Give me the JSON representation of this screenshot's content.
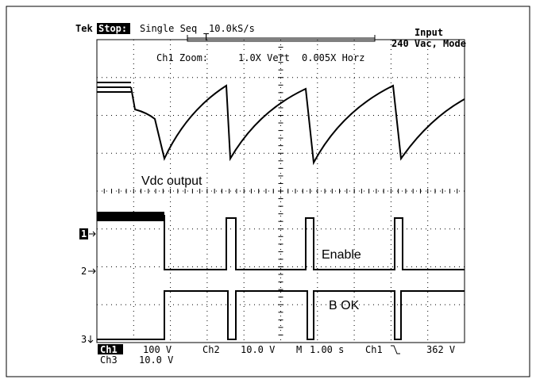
{
  "header": {
    "brand": "Tek",
    "state": "Stop:",
    "mode": "Single Seq",
    "rate": "10.0kS/s",
    "input_title": "Input",
    "input_value": "240 Vac, Mode"
  },
  "zoom": {
    "label": "Ch1 Zoom:",
    "vert": "1.0X Vert",
    "horz": "0.005X Horz"
  },
  "traces": [
    "Vdc output",
    "Enable",
    "B OK"
  ],
  "markers": [
    "1",
    "2",
    "3"
  ],
  "footer": {
    "ch1": "Ch1",
    "ch1_scale": "100 V",
    "ch2": "Ch2",
    "ch2_scale": "10.0 V",
    "timebase_label": "M",
    "timebase": "1.00 s",
    "trigger_source": "Ch1",
    "trigger_level": "362 V",
    "ch3": "Ch3",
    "ch3_scale": "10.0 V"
  }
}
